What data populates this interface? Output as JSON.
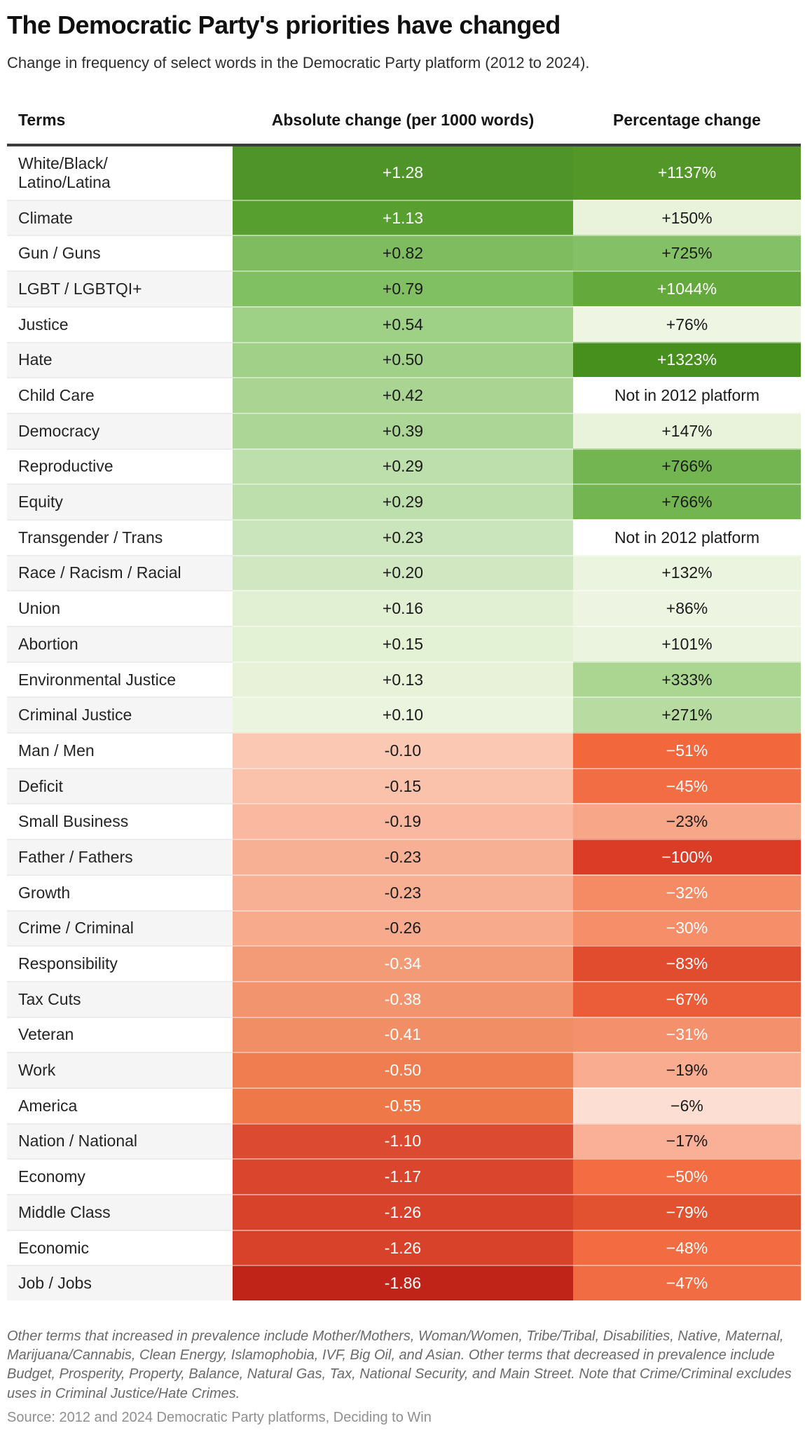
{
  "title": "The Democratic Party's priorities have changed",
  "subtitle": "Change in frequency of select words in the Democratic Party platform (2012 to 2024).",
  "table": {
    "columns": [
      "Terms",
      "Absolute change (per 1000 words)",
      "Percentage change"
    ],
    "stripe": [
      "#ffffff",
      "#f5f5f5"
    ],
    "rule_color": "#3b3b3b",
    "rows": [
      {
        "term": "White/Black/\nLatino/Latina",
        "abs": "+1.28",
        "abs_bg": "#4e9428",
        "abs_fg": "#ffffff",
        "pct": "+1137%",
        "pct_bg": "#539728",
        "pct_fg": "#ffffff"
      },
      {
        "term": "Climate",
        "abs": "+1.13",
        "abs_bg": "#57a02f",
        "abs_fg": "#ffffff",
        "pct": "+150%",
        "pct_bg": "#e9f3db",
        "pct_fg": "#1b1b1b"
      },
      {
        "term": "Gun / Guns",
        "abs": "+0.82",
        "abs_bg": "#7ebc5f",
        "abs_fg": "#1b1b1b",
        "pct": "+725%",
        "pct_bg": "#84c066",
        "pct_fg": "#1b1b1b"
      },
      {
        "term": "LGBT / LGBTQI+",
        "abs": "+0.79",
        "abs_bg": "#81bf63",
        "abs_fg": "#1b1b1b",
        "pct": "+1044%",
        "pct_bg": "#63a93b",
        "pct_fg": "#ffffff"
      },
      {
        "term": "Justice",
        "abs": "+0.54",
        "abs_bg": "#9ed085",
        "abs_fg": "#1b1b1b",
        "pct": "+76%",
        "pct_bg": "#eef6e3",
        "pct_fg": "#1b1b1b"
      },
      {
        "term": "Hate",
        "abs": "+0.50",
        "abs_bg": "#a1d189",
        "abs_fg": "#1b1b1b",
        "pct": "+1323%",
        "pct_bg": "#47901d",
        "pct_fg": "#ffffff"
      },
      {
        "term": "Child Care",
        "abs": "+0.42",
        "abs_bg": "#a9d492",
        "abs_fg": "#1b1b1b",
        "pct": "Not in 2012 platform",
        "pct_bg": "#ffffff",
        "pct_fg": "#1b1b1b"
      },
      {
        "term": "Democracy",
        "abs": "+0.39",
        "abs_bg": "#acd696",
        "abs_fg": "#1b1b1b",
        "pct": "+147%",
        "pct_bg": "#e9f3dc",
        "pct_fg": "#1b1b1b"
      },
      {
        "term": "Reproductive",
        "abs": "+0.29",
        "abs_bg": "#bddfab",
        "abs_fg": "#1b1b1b",
        "pct": "+766%",
        "pct_bg": "#73b551",
        "pct_fg": "#1b1b1b"
      },
      {
        "term": "Equity",
        "abs": "+0.29",
        "abs_bg": "#bddfab",
        "abs_fg": "#1b1b1b",
        "pct": "+766%",
        "pct_bg": "#73b551",
        "pct_fg": "#1b1b1b"
      },
      {
        "term": "Transgender / Trans",
        "abs": "+0.23",
        "abs_bg": "#cae4bb",
        "abs_fg": "#1b1b1b",
        "pct": "Not in 2012 platform",
        "pct_bg": "#ffffff",
        "pct_fg": "#1b1b1b"
      },
      {
        "term": "Race / Racism / Racial",
        "abs": "+0.20",
        "abs_bg": "#d0e7c2",
        "abs_fg": "#1b1b1b",
        "pct": "+132%",
        "pct_bg": "#eaf4de",
        "pct_fg": "#1b1b1b"
      },
      {
        "term": "Union",
        "abs": "+0.16",
        "abs_bg": "#e1f0d3",
        "abs_fg": "#1b1b1b",
        "pct": "+86%",
        "pct_bg": "#edf5e2",
        "pct_fg": "#1b1b1b"
      },
      {
        "term": "Abortion",
        "abs": "+0.15",
        "abs_bg": "#e3f1d5",
        "abs_fg": "#1b1b1b",
        "pct": "+101%",
        "pct_bg": "#ebf4df",
        "pct_fg": "#1b1b1b"
      },
      {
        "term": "Environmental Justice",
        "abs": "+0.13",
        "abs_bg": "#e7f2d9",
        "abs_fg": "#1b1b1b",
        "pct": "+333%",
        "pct_bg": "#abd692",
        "pct_fg": "#1b1b1b"
      },
      {
        "term": "Criminal Justice",
        "abs": "+0.10",
        "abs_bg": "#ebf4de",
        "abs_fg": "#1b1b1b",
        "pct": "+271%",
        "pct_bg": "#b8dba2",
        "pct_fg": "#1b1b1b"
      },
      {
        "term": "Man / Men",
        "abs": "-0.10",
        "abs_bg": "#fbc8b4",
        "abs_fg": "#1b1b1b",
        "pct": "−51%",
        "pct_bg": "#f3673d",
        "pct_fg": "#ffffff"
      },
      {
        "term": "Deficit",
        "abs": "-0.15",
        "abs_bg": "#fac1ab",
        "abs_fg": "#1b1b1b",
        "pct": "−45%",
        "pct_bg": "#f36d44",
        "pct_fg": "#ffffff"
      },
      {
        "term": "Small Business",
        "abs": "-0.19",
        "abs_bg": "#f9b89f",
        "abs_fg": "#1b1b1b",
        "pct": "−23%",
        "pct_bg": "#f8a688",
        "pct_fg": "#1b1b1b"
      },
      {
        "term": "Father / Fathers",
        "abs": "-0.23",
        "abs_bg": "#f8b095",
        "abs_fg": "#1b1b1b",
        "pct": "−100%",
        "pct_bg": "#da3c26",
        "pct_fg": "#ffffff"
      },
      {
        "term": "Growth",
        "abs": "-0.23",
        "abs_bg": "#f8b095",
        "abs_fg": "#1b1b1b",
        "pct": "−32%",
        "pct_bg": "#f58b65",
        "pct_fg": "#ffffff"
      },
      {
        "term": "Crime / Criminal",
        "abs": "-0.26",
        "abs_bg": "#f7aa8c",
        "abs_fg": "#1b1b1b",
        "pct": "−30%",
        "pct_bg": "#f58e69",
        "pct_fg": "#ffffff"
      },
      {
        "term": "Responsibility",
        "abs": "-0.34",
        "abs_bg": "#f39b77",
        "abs_fg": "#ffffff",
        "pct": "−83%",
        "pct_bg": "#e14c2e",
        "pct_fg": "#ffffff"
      },
      {
        "term": "Tax Cuts",
        "abs": "-0.38",
        "abs_bg": "#f2946e",
        "abs_fg": "#ffffff",
        "pct": "−67%",
        "pct_bg": "#eb5d38",
        "pct_fg": "#ffffff"
      },
      {
        "term": "Veteran",
        "abs": "-0.41",
        "abs_bg": "#f18e66",
        "abs_fg": "#ffffff",
        "pct": "−31%",
        "pct_bg": "#f5906c",
        "pct_fg": "#ffffff"
      },
      {
        "term": "Work",
        "abs": "-0.50",
        "abs_bg": "#ef7d50",
        "abs_fg": "#ffffff",
        "pct": "−19%",
        "pct_bg": "#f9ac90",
        "pct_fg": "#1b1b1b"
      },
      {
        "term": "America",
        "abs": "-0.55",
        "abs_bg": "#ee7848",
        "abs_fg": "#ffffff",
        "pct": "−6%",
        "pct_bg": "#fcdfd2",
        "pct_fg": "#1b1b1b"
      },
      {
        "term": "Nation / National",
        "abs": "-1.10",
        "abs_bg": "#dc4b31",
        "abs_fg": "#ffffff",
        "pct": "−17%",
        "pct_bg": "#f9b096",
        "pct_fg": "#1b1b1b"
      },
      {
        "term": "Economy",
        "abs": "-1.17",
        "abs_bg": "#da462d",
        "abs_fg": "#ffffff",
        "pct": "−50%",
        "pct_bg": "#f36c42",
        "pct_fg": "#ffffff"
      },
      {
        "term": "Middle Class",
        "abs": "-1.26",
        "abs_bg": "#d8422a",
        "abs_fg": "#ffffff",
        "pct": "−79%",
        "pct_bg": "#e25231",
        "pct_fg": "#ffffff"
      },
      {
        "term": "Economic",
        "abs": "-1.26",
        "abs_bg": "#d8422a",
        "abs_fg": "#ffffff",
        "pct": "−48%",
        "pct_bg": "#f26b41",
        "pct_fg": "#ffffff"
      },
      {
        "term": "Job / Jobs",
        "abs": "-1.86",
        "abs_bg": "#c02419",
        "abs_fg": "#ffffff",
        "pct": "−47%",
        "pct_bg": "#f26c43",
        "pct_fg": "#ffffff"
      }
    ]
  },
  "footnote": "Other terms that increased in prevalence include Mother/Mothers, Woman/Women, Tribe/Tribal, Disabilities, Native, Maternal, Marijuana/Cannabis, Clean Energy, Islamophobia, IVF, Big Oil, and Asian. Other terms that decreased in prevalence include Budget, Prosperity, Property, Balance, Natural Gas, Tax, National Security, and Main Street. Note that Crime/Criminal excludes uses in Criminal Justice/Hate Crimes.",
  "source": "Source: 2012 and 2024 Democratic Party platforms, Deciding to Win",
  "chart_data": {
    "type": "table",
    "title": "The Democratic Party's priorities have changed",
    "subtitle": "Change in frequency of select words in the Democratic Party platform (2012 to 2024).",
    "columns": [
      "Terms",
      "Absolute change (per 1000 words)",
      "Percentage change"
    ],
    "color_encoding": "cell background is a diverging green (increase) / red (decrease) scale proportional to magnitude",
    "rows": [
      {
        "term": "White/Black/Latino/Latina",
        "absolute_change_per_1000_words": 1.28,
        "percentage_change": 1137
      },
      {
        "term": "Climate",
        "absolute_change_per_1000_words": 1.13,
        "percentage_change": 150
      },
      {
        "term": "Gun / Guns",
        "absolute_change_per_1000_words": 0.82,
        "percentage_change": 725
      },
      {
        "term": "LGBT / LGBTQI+",
        "absolute_change_per_1000_words": 0.79,
        "percentage_change": 1044
      },
      {
        "term": "Justice",
        "absolute_change_per_1000_words": 0.54,
        "percentage_change": 76
      },
      {
        "term": "Hate",
        "absolute_change_per_1000_words": 0.5,
        "percentage_change": 1323
      },
      {
        "term": "Child Care",
        "absolute_change_per_1000_words": 0.42,
        "percentage_change": "Not in 2012 platform"
      },
      {
        "term": "Democracy",
        "absolute_change_per_1000_words": 0.39,
        "percentage_change": 147
      },
      {
        "term": "Reproductive",
        "absolute_change_per_1000_words": 0.29,
        "percentage_change": 766
      },
      {
        "term": "Equity",
        "absolute_change_per_1000_words": 0.29,
        "percentage_change": 766
      },
      {
        "term": "Transgender / Trans",
        "absolute_change_per_1000_words": 0.23,
        "percentage_change": "Not in 2012 platform"
      },
      {
        "term": "Race / Racism / Racial",
        "absolute_change_per_1000_words": 0.2,
        "percentage_change": 132
      },
      {
        "term": "Union",
        "absolute_change_per_1000_words": 0.16,
        "percentage_change": 86
      },
      {
        "term": "Abortion",
        "absolute_change_per_1000_words": 0.15,
        "percentage_change": 101
      },
      {
        "term": "Environmental Justice",
        "absolute_change_per_1000_words": 0.13,
        "percentage_change": 333
      },
      {
        "term": "Criminal Justice",
        "absolute_change_per_1000_words": 0.1,
        "percentage_change": 271
      },
      {
        "term": "Man / Men",
        "absolute_change_per_1000_words": -0.1,
        "percentage_change": -51
      },
      {
        "term": "Deficit",
        "absolute_change_per_1000_words": -0.15,
        "percentage_change": -45
      },
      {
        "term": "Small Business",
        "absolute_change_per_1000_words": -0.19,
        "percentage_change": -23
      },
      {
        "term": "Father / Fathers",
        "absolute_change_per_1000_words": -0.23,
        "percentage_change": -100
      },
      {
        "term": "Growth",
        "absolute_change_per_1000_words": -0.23,
        "percentage_change": -32
      },
      {
        "term": "Crime / Criminal",
        "absolute_change_per_1000_words": -0.26,
        "percentage_change": -30
      },
      {
        "term": "Responsibility",
        "absolute_change_per_1000_words": -0.34,
        "percentage_change": -83
      },
      {
        "term": "Tax Cuts",
        "absolute_change_per_1000_words": -0.38,
        "percentage_change": -67
      },
      {
        "term": "Veteran",
        "absolute_change_per_1000_words": -0.41,
        "percentage_change": -31
      },
      {
        "term": "Work",
        "absolute_change_per_1000_words": -0.5,
        "percentage_change": -19
      },
      {
        "term": "America",
        "absolute_change_per_1000_words": -0.55,
        "percentage_change": -6
      },
      {
        "term": "Nation / National",
        "absolute_change_per_1000_words": -1.1,
        "percentage_change": -17
      },
      {
        "term": "Economy",
        "absolute_change_per_1000_words": -1.17,
        "percentage_change": -50
      },
      {
        "term": "Middle Class",
        "absolute_change_per_1000_words": -1.26,
        "percentage_change": -79
      },
      {
        "term": "Economic",
        "absolute_change_per_1000_words": -1.26,
        "percentage_change": -48
      },
      {
        "term": "Job / Jobs",
        "absolute_change_per_1000_words": -1.86,
        "percentage_change": -47
      }
    ]
  }
}
